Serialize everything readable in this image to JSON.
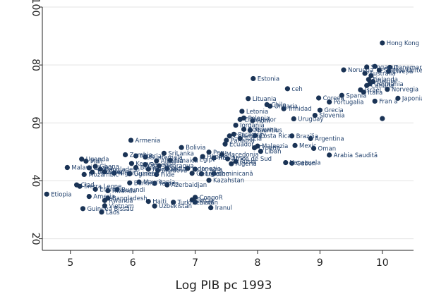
{
  "chart_data": {
    "type": "scatter",
    "title": "",
    "xlabel": "Log PIB pc 1993",
    "ylabel": "",
    "xlim": [
      4.55,
      10.5
    ],
    "ylim": [
      16,
      100
    ],
    "x_ticks": [
      {
        "value": 5,
        "label": "5"
      },
      {
        "value": 6,
        "label": "6"
      },
      {
        "value": 7,
        "label": "7"
      },
      {
        "value": 8,
        "label": "8"
      },
      {
        "value": 9,
        "label": "9"
      },
      {
        "value": 10,
        "label": "10"
      }
    ],
    "y_ticks": [
      {
        "value": 20,
        "label": "20"
      },
      {
        "value": 40,
        "label": "40"
      },
      {
        "value": 60,
        "label": "60"
      },
      {
        "value": 80,
        "label": "80"
      },
      {
        "value": 100,
        "label": "100"
      }
    ],
    "grid": true,
    "marker_color": "#1a3355",
    "label_color": "#1f3f6b",
    "points": [
      {
        "x": 10.0,
        "y": 87.6,
        "label": "Hong Kong"
      },
      {
        "x": 9.38,
        "y": 78.3,
        "label": "Noruega"
      },
      {
        "x": 9.75,
        "y": 79.3,
        "label": "Singapur"
      },
      {
        "x": 9.88,
        "y": 79.5,
        "label": ""
      },
      {
        "x": 10.12,
        "y": 79.2,
        "label": "Danemarca"
      },
      {
        "x": 9.95,
        "y": 78.2,
        "label": "Statele Unite ale"
      },
      {
        "x": 10.1,
        "y": 77.8,
        "label": "Elveția"
      },
      {
        "x": 9.72,
        "y": 77.1,
        "label": "Australia"
      },
      {
        "x": 9.82,
        "y": 76.3,
        "label": ""
      },
      {
        "x": 9.78,
        "y": 75.0,
        "label": "Finlanda"
      },
      {
        "x": 9.85,
        "y": 74.3,
        "label": "Belgia"
      },
      {
        "x": 9.8,
        "y": 73.5,
        "label": "Germania"
      },
      {
        "x": 9.75,
        "y": 72.9,
        "label": "Canada"
      },
      {
        "x": 9.65,
        "y": 71.4,
        "label": "Israel"
      },
      {
        "x": 9.7,
        "y": 70.6,
        "label": "Italia"
      },
      {
        "x": 10.08,
        "y": 71.6,
        "label": "Norvegia"
      },
      {
        "x": 9.35,
        "y": 69.5,
        "label": "Spania"
      },
      {
        "x": 8.98,
        "y": 68.6,
        "label": "Coreea"
      },
      {
        "x": 9.15,
        "y": 67.2,
        "label": "Portugalia"
      },
      {
        "x": 9.88,
        "y": 67.5,
        "label": "Fran a"
      },
      {
        "x": 10.25,
        "y": 68.5,
        "label": "Japonia"
      },
      {
        "x": 9.0,
        "y": 64.4,
        "label": "Grecia"
      },
      {
        "x": 8.92,
        "y": 62.6,
        "label": "Slovenia"
      },
      {
        "x": 10.0,
        "y": 61.5,
        "label": ""
      },
      {
        "x": 7.93,
        "y": 75.3,
        "label": "Estonia"
      },
      {
        "x": 8.48,
        "y": 71.8,
        "label": "ceh"
      },
      {
        "x": 7.85,
        "y": 68.4,
        "label": "Lituania"
      },
      {
        "x": 8.15,
        "y": 66.3,
        "label": "Chile"
      },
      {
        "x": 8.2,
        "y": 65.8,
        "label": "Ungaria"
      },
      {
        "x": 8.42,
        "y": 64.9,
        "label": "Trinidad"
      },
      {
        "x": 7.75,
        "y": 64.0,
        "label": "Letonia"
      },
      {
        "x": 7.78,
        "y": 61.7,
        "label": "Polonia"
      },
      {
        "x": 7.72,
        "y": 61.2,
        "label": "ElSalvador"
      },
      {
        "x": 7.92,
        "y": 60.8,
        "label": "Rom"
      },
      {
        "x": 8.58,
        "y": 61.4,
        "label": "Uruguay"
      },
      {
        "x": 7.65,
        "y": 59.2,
        "label": "Iordania"
      },
      {
        "x": 7.78,
        "y": 57.8,
        "label": "Botswana"
      },
      {
        "x": 7.88,
        "y": 57.5,
        "label": "Mauritius"
      },
      {
        "x": 7.62,
        "y": 56.1,
        "label": "Paraguay"
      },
      {
        "x": 7.55,
        "y": 55.5,
        "label": "Colombia"
      },
      {
        "x": 7.96,
        "y": 55.6,
        "label": "Costa Rica"
      },
      {
        "x": 8.55,
        "y": 55.5,
        "label": "Brazilia"
      },
      {
        "x": 7.72,
        "y": 54.6,
        "label": "Turcia"
      },
      {
        "x": 7.5,
        "y": 54.0,
        "label": "Panama"
      },
      {
        "x": 8.85,
        "y": 54.6,
        "label": "Argentina"
      },
      {
        "x": 7.48,
        "y": 52.7,
        "label": "Ecuador"
      },
      {
        "x": 8.0,
        "y": 52.0,
        "label": "Malaezia"
      },
      {
        "x": 8.6,
        "y": 52.2,
        "label": "Mexic"
      },
      {
        "x": 7.95,
        "y": 51.4,
        "label": "Croația"
      },
      {
        "x": 8.9,
        "y": 51.2,
        "label": "Oman"
      },
      {
        "x": 8.05,
        "y": 50.2,
        "label": "Liban"
      },
      {
        "x": 9.15,
        "y": 48.9,
        "label": "Arabia Saudită"
      },
      {
        "x": 7.22,
        "y": 49.9,
        "label": "Peru"
      },
      {
        "x": 7.43,
        "y": 49.1,
        "label": "Macedonia"
      },
      {
        "x": 7.3,
        "y": 47.9,
        "label": "Honduras"
      },
      {
        "x": 7.52,
        "y": 47.6,
        "label": "Africa de Sud"
      },
      {
        "x": 7.12,
        "y": 48.4,
        "label": "Filipine"
      },
      {
        "x": 7.0,
        "y": 47.4,
        "label": "Egipt"
      },
      {
        "x": 7.65,
        "y": 46.7,
        "label": "Rusia"
      },
      {
        "x": 7.58,
        "y": 45.9,
        "label": "Algeria"
      },
      {
        "x": 8.45,
        "y": 46.3,
        "label": "Venezuela"
      },
      {
        "x": 8.55,
        "y": 46.1,
        "label": "Gabon"
      },
      {
        "x": 5.97,
        "y": 54.0,
        "label": "Armenia"
      },
      {
        "x": 6.78,
        "y": 51.5,
        "label": "Bolivia"
      },
      {
        "x": 6.5,
        "y": 49.5,
        "label": "SriLanka"
      },
      {
        "x": 5.88,
        "y": 49.0,
        "label": "Zambia"
      },
      {
        "x": 6.05,
        "y": 48.6,
        "label": "Nigeria"
      },
      {
        "x": 6.2,
        "y": 48.2,
        "label": "Guatemala"
      },
      {
        "x": 6.38,
        "y": 46.9,
        "label": "Albania"
      },
      {
        "x": 6.6,
        "y": 47.1,
        "label": "Jamaica"
      },
      {
        "x": 5.98,
        "y": 46.0,
        "label": "Kenya"
      },
      {
        "x": 6.2,
        "y": 45.6,
        "label": "Senegal"
      },
      {
        "x": 6.42,
        "y": 45.2,
        "label": "Nicaragua"
      },
      {
        "x": 6.05,
        "y": 44.6,
        "label": "Benin"
      },
      {
        "x": 6.55,
        "y": 44.3,
        "label": "India"
      },
      {
        "x": 6.88,
        "y": 44.3,
        "label": "Indonezia"
      },
      {
        "x": 6.25,
        "y": 44.0,
        "label": "Pakistan"
      },
      {
        "x": 6.4,
        "y": 43.6,
        "label": "Moldova"
      },
      {
        "x": 7.0,
        "y": 44.0,
        "label": "Ucraina"
      },
      {
        "x": 6.95,
        "y": 42.6,
        "label": "Georgia"
      },
      {
        "x": 7.1,
        "y": 42.4,
        "label": "Lesotho"
      },
      {
        "x": 7.3,
        "y": 42.5,
        "label": "dominicană"
      },
      {
        "x": 6.38,
        "y": 42.2,
        "label": "Filde"
      },
      {
        "x": 5.95,
        "y": 42.4,
        "label": "Uganda"
      },
      {
        "x": 5.18,
        "y": 47.5,
        "label": "Uganda"
      },
      {
        "x": 5.25,
        "y": 46.8,
        "label": "Mali"
      },
      {
        "x": 5.4,
        "y": 45.0,
        "label": "Ghana"
      },
      {
        "x": 4.95,
        "y": 44.6,
        "label": "Malawi"
      },
      {
        "x": 5.3,
        "y": 44.5,
        "label": "Ghana"
      },
      {
        "x": 5.48,
        "y": 44.0,
        "label": "Bangladesh"
      },
      {
        "x": 5.22,
        "y": 42.2,
        "label": "Mozambic"
      },
      {
        "x": 5.35,
        "y": 43.0,
        "label": "Tanzania"
      },
      {
        "x": 5.55,
        "y": 43.1,
        "label": "Etiopia"
      },
      {
        "x": 5.7,
        "y": 42.7,
        "label": "Niger"
      },
      {
        "x": 5.95,
        "y": 42.5,
        "label": "Guineea"
      },
      {
        "x": 6.1,
        "y": 39.6,
        "label": "Mauritania"
      },
      {
        "x": 5.95,
        "y": 39.3,
        "label": "Burkina"
      },
      {
        "x": 6.55,
        "y": 38.6,
        "label": "Azerbaidjan"
      },
      {
        "x": 6.35,
        "y": 39.1,
        "label": "Yemen"
      },
      {
        "x": 7.22,
        "y": 40.2,
        "label": "Kazahstan"
      },
      {
        "x": 5.1,
        "y": 38.6,
        "label": "Ciad"
      },
      {
        "x": 5.15,
        "y": 38.1,
        "label": "Sierra Leone"
      },
      {
        "x": 5.4,
        "y": 37.1,
        "label": "Eritreea"
      },
      {
        "x": 5.6,
        "y": 36.6,
        "label": "Rwanda"
      },
      {
        "x": 5.75,
        "y": 37.0,
        "label": "Burundi"
      },
      {
        "x": 4.62,
        "y": 35.4,
        "label": "Etiopia"
      },
      {
        "x": 5.3,
        "y": 34.6,
        "label": "Ameria"
      },
      {
        "x": 5.6,
        "y": 34.0,
        "label": "Bangladesh"
      },
      {
        "x": 5.55,
        "y": 33.2,
        "label": "Rwanda"
      },
      {
        "x": 6.25,
        "y": 32.9,
        "label": "Haiti"
      },
      {
        "x": 6.65,
        "y": 32.6,
        "label": "Turkmenistan"
      },
      {
        "x": 6.95,
        "y": 33.4,
        "label": "Turcia"
      },
      {
        "x": 7.0,
        "y": 32.6,
        "label": "Siria"
      },
      {
        "x": 7.0,
        "y": 34.3,
        "label": "CongoR"
      },
      {
        "x": 5.55,
        "y": 31.4,
        "label": "Vietnam"
      },
      {
        "x": 6.35,
        "y": 31.3,
        "label": "Uzbekistan"
      },
      {
        "x": 7.25,
        "y": 30.7,
        "label": "Iranul"
      },
      {
        "x": 5.2,
        "y": 30.4,
        "label": "Guineea Bissau"
      },
      {
        "x": 5.5,
        "y": 29.2,
        "label": "Laos"
      }
    ]
  }
}
